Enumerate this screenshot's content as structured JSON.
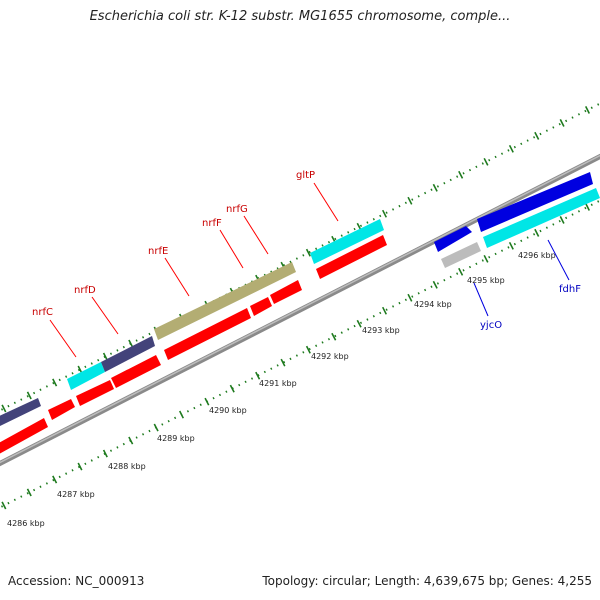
{
  "map": {
    "title": "Escherichia coli str. K-12 substr. MG1655 chromosome, comple...",
    "accession_text": "Accession: NC_000913",
    "summary_text": "Topology: circular; Length: 4,639,675 bp; Genes: 4,255",
    "colors": {
      "backbone": "#8c8c8c",
      "forward_tick": "#1e7a1e",
      "red_feature": "#ff0000",
      "cyan_feature": "#00e6e6",
      "navy_feature": "#43437a",
      "olive_feature": "#b3ad73",
      "blue_feature": "#0000e0",
      "grey_feature": "#bcbcbc",
      "red_label": "#c80000",
      "blue_label": "#0000c0"
    },
    "kbp_labels": [
      "4286 kbp",
      "4287 kbp",
      "4288 kbp",
      "4289 kbp",
      "4290 kbp",
      "4291 kbp",
      "4292 kbp",
      "4293 kbp",
      "4294 kbp",
      "4295 kbp",
      "4296 kbp"
    ],
    "gene_labels": [
      {
        "name": "nrfC",
        "color": "red"
      },
      {
        "name": "nrfD",
        "color": "red"
      },
      {
        "name": "nrfE",
        "color": "red"
      },
      {
        "name": "nrfF",
        "color": "red"
      },
      {
        "name": "nrfG",
        "color": "red"
      },
      {
        "name": "gltP",
        "color": "red"
      },
      {
        "name": "yjcO",
        "color": "blue"
      },
      {
        "name": "fdhF",
        "color": "blue"
      }
    ]
  }
}
